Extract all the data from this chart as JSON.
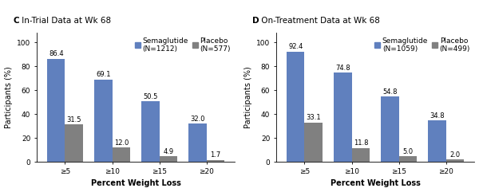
{
  "panel_C": {
    "title_bold": "C",
    "title_rest": " In-Trial Data at Wk 68",
    "categories": [
      "≥5",
      "≥10",
      "≥15",
      "≥20"
    ],
    "sema_values": [
      86.4,
      69.1,
      50.5,
      32.0
    ],
    "placebo_values": [
      31.5,
      12.0,
      4.9,
      1.7
    ],
    "sema_label": "Semaglutide\n(N=1212)",
    "placebo_label": "Placebo\n(N=577)",
    "ylabel": "Participants (%)",
    "xlabel": "Percent Weight Loss",
    "ylim": [
      0,
      108
    ]
  },
  "panel_D": {
    "title_bold": "D",
    "title_rest": " On-Treatment Data at Wk 68",
    "categories": [
      "≥5",
      "≥10",
      "≥15",
      "≥20"
    ],
    "sema_values": [
      92.4,
      74.8,
      54.8,
      34.8
    ],
    "placebo_values": [
      33.1,
      11.8,
      5.0,
      2.0
    ],
    "sema_label": "Semaglutide\n(N=1059)",
    "placebo_label": "Placebo\n(N=499)",
    "ylabel": "Participants (%)",
    "xlabel": "Percent Weight Loss",
    "ylim": [
      0,
      108
    ]
  },
  "sema_color": "#6080BE",
  "placebo_color": "#808080",
  "bar_width": 0.38,
  "bg_color": "#FFFFFF",
  "title_fontsize": 7.5,
  "tick_fontsize": 6.5,
  "axis_label_fontsize": 7.0,
  "legend_fontsize": 6.5,
  "annot_fontsize": 6.0
}
